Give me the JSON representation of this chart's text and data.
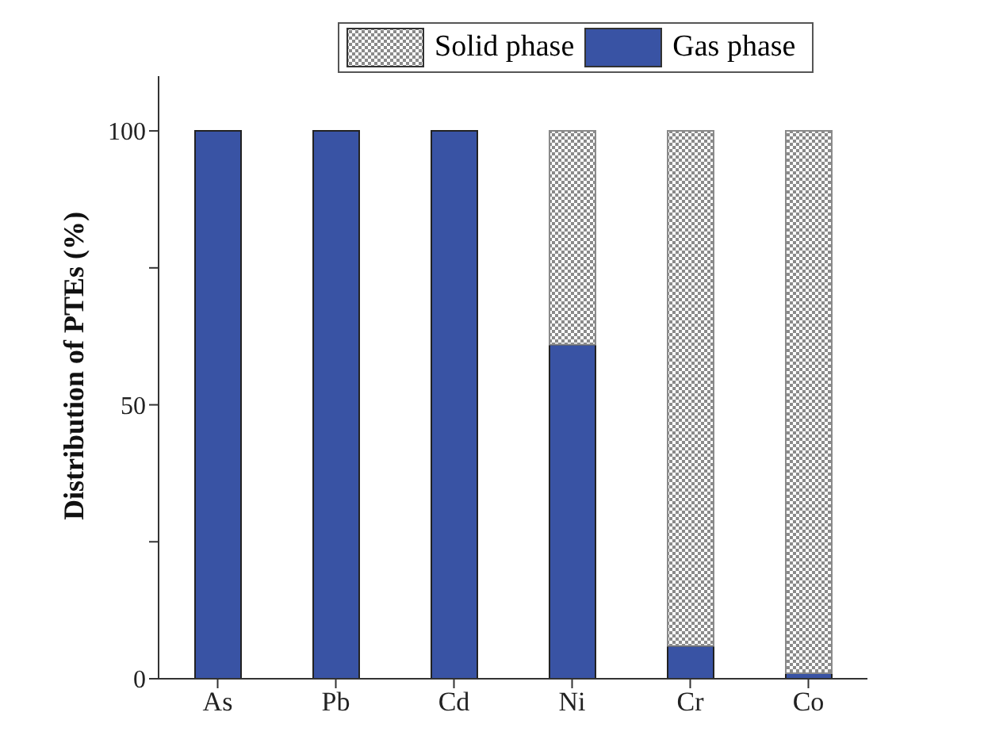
{
  "chart_data": {
    "type": "bar",
    "stacked": true,
    "ylabel": "Distribution of PTEs (%)",
    "categories": [
      "As",
      "Pb",
      "Cd",
      "Ni",
      "Cr",
      "Co"
    ],
    "series": [
      {
        "name": "Gas phase",
        "color": "#3953a4",
        "values": [
          100,
          100,
          100,
          61,
          6,
          1
        ]
      },
      {
        "name": "Solid phase",
        "color": "#8a8a8a",
        "values": [
          0,
          0,
          0,
          39,
          94,
          99
        ]
      }
    ],
    "ylim": [
      0,
      110
    ],
    "yticks": [
      0,
      {
        "value": 25,
        "label": null
      },
      50,
      {
        "value": 75,
        "label": null
      },
      100
    ],
    "legend": "top",
    "grid": false
  }
}
